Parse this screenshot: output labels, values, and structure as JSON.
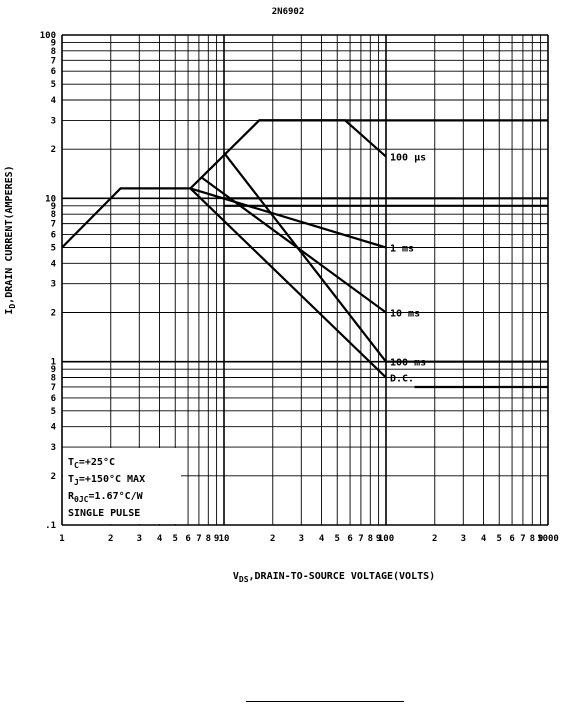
{
  "chart_data": {
    "type": "line",
    "title": "2N6902",
    "xlabel_sub": "DS",
    "xlabel_main": ",DRAIN-TO-SOURCE VOLTAGE(VOLTS)",
    "xlabel_prefix": "V",
    "ylabel_prefix": "I",
    "ylabel_sub": "D",
    "ylabel_main": ",DRAIN CURRENT(AMPERES)",
    "x_scale": "log",
    "y_scale": "log",
    "xlim": [
      1,
      1000
    ],
    "ylim": [
      0.1,
      100
    ],
    "grid": true,
    "x_major_ticks": [
      "1",
      "10",
      "100",
      "1000"
    ],
    "x_minor_ticks": [
      "2",
      "3",
      "4",
      "5",
      "6",
      "7",
      "8",
      "9"
    ],
    "y_tick_labels": [
      {
        "v": 0.1,
        "t": ".1"
      },
      {
        "v": 0.2,
        "t": "2"
      },
      {
        "v": 0.3,
        "t": "3"
      },
      {
        "v": 0.4,
        "t": "4"
      },
      {
        "v": 0.5,
        "t": "5"
      },
      {
        "v": 0.6,
        "t": "6"
      },
      {
        "v": 0.7,
        "t": "7"
      },
      {
        "v": 0.8,
        "t": "8"
      },
      {
        "v": 0.9,
        "t": "9"
      },
      {
        "v": 1,
        "t": "1"
      },
      {
        "v": 2,
        "t": "2"
      },
      {
        "v": 3,
        "t": "3"
      },
      {
        "v": 4,
        "t": "4"
      },
      {
        "v": 5,
        "t": "5"
      },
      {
        "v": 6,
        "t": "6"
      },
      {
        "v": 7,
        "t": "7"
      },
      {
        "v": 8,
        "t": "8"
      },
      {
        "v": 9,
        "t": "9"
      },
      {
        "v": 10,
        "t": "10"
      },
      {
        "v": 20,
        "t": "2"
      },
      {
        "v": 30,
        "t": "3"
      },
      {
        "v": 40,
        "t": "4"
      },
      {
        "v": 50,
        "t": "5"
      },
      {
        "v": 60,
        "t": "6"
      },
      {
        "v": 70,
        "t": "7"
      },
      {
        "v": 80,
        "t": "8"
      },
      {
        "v": 90,
        "t": "9"
      },
      {
        "v": 100,
        "t": "100"
      }
    ],
    "series": [
      {
        "name": "100 µs",
        "points": [
          [
            1,
            5
          ],
          [
            2.3,
            11.5
          ],
          [
            6.2,
            11.5
          ],
          [
            16.5,
            30
          ],
          [
            56,
            30
          ],
          [
            100,
            18
          ]
        ]
      },
      {
        "name": "1 ms",
        "points": [
          [
            6.2,
            11.5
          ],
          [
            100,
            5
          ]
        ]
      },
      {
        "name": "10 ms",
        "points": [
          [
            7.2,
            13.5
          ],
          [
            100,
            2
          ]
        ]
      },
      {
        "name": "100 ms",
        "points": [
          [
            10,
            19
          ],
          [
            100,
            1
          ]
        ]
      },
      {
        "name": "D.C.",
        "points": [
          [
            16.5,
            30
          ],
          [
            1000,
            30
          ]
        ]
      },
      {
        "name": "D.C.",
        "points": [
          [
            6.2,
            11.5
          ],
          [
            100,
            0.8
          ]
        ]
      }
    ],
    "annotations": [
      {
        "text": "100 µs",
        "x": 100,
        "y": 18
      },
      {
        "text": "1 ms",
        "x": 100,
        "y": 5
      },
      {
        "text": "10 ms",
        "x": 100,
        "y": 2
      },
      {
        "text": "100 ms",
        "x": 100,
        "y": 1
      },
      {
        "text": "D.C.",
        "x": 100,
        "y": 0.8
      }
    ],
    "legend_lines": [
      {
        "main": "T",
        "sub": "C",
        "rest": "=+25°C"
      },
      {
        "main": "T",
        "sub": "J",
        "rest": "=+150°C MAX"
      },
      {
        "main": "R",
        "sub": "θJC",
        "rest": "=1.67°C/W"
      },
      {
        "main": "SINGLE PULSE",
        "sub": "",
        "rest": ""
      }
    ],
    "extra_lines": [
      {
        "x": [
          10,
          1000
        ],
        "y": [
          10,
          10
        ]
      },
      {
        "x": [
          10,
          1000
        ],
        "y": [
          9,
          9
        ]
      },
      {
        "x": [
          100,
          1000
        ],
        "y": [
          1,
          1
        ]
      },
      {
        "x": [
          150,
          1000
        ],
        "y": [
          0.7,
          0.7
        ]
      }
    ]
  }
}
